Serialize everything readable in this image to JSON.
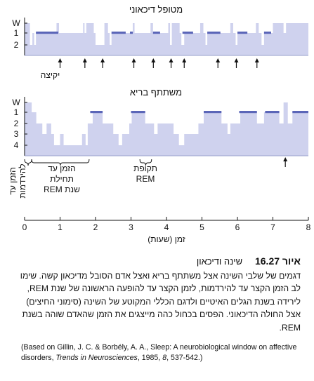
{
  "chart_data": {
    "type": "area",
    "xlabel": "זמן (שעות)",
    "x_ticks": [
      0,
      1,
      2,
      3,
      4,
      5,
      6,
      7,
      8
    ],
    "xlim": [
      0,
      8
    ],
    "y_levels": [
      "W",
      "1",
      "2",
      "3",
      "4"
    ],
    "fill_color": "#cfd2ee",
    "rem_color": "#5b66b8",
    "panels": [
      {
        "title": "מטופל דיכאוני",
        "hypnogram": [
          [
            "W",
            0.0
          ],
          [
            "2",
            0.15
          ],
          [
            "1",
            0.22
          ],
          [
            "2",
            0.27
          ],
          [
            "1",
            0.32
          ],
          [
            "W",
            0.9
          ],
          [
            "1",
            0.97
          ],
          [
            "W",
            1.65
          ],
          [
            "1",
            1.69
          ],
          [
            "W",
            1.74
          ],
          [
            "1",
            1.95
          ],
          [
            "2",
            2.0
          ],
          [
            "W",
            2.25
          ],
          [
            "1",
            2.35
          ],
          [
            "2",
            2.4
          ],
          [
            "1",
            2.45
          ],
          [
            "W",
            3.05
          ],
          [
            "1",
            3.1
          ],
          [
            "W",
            3.55
          ],
          [
            "1",
            3.62
          ],
          [
            "W",
            4.05
          ],
          [
            "2",
            4.1
          ],
          [
            "W",
            4.15
          ],
          [
            "1",
            4.37
          ],
          [
            "2",
            4.42
          ],
          [
            "1",
            4.5
          ],
          [
            "W",
            4.95
          ],
          [
            "1",
            5.04
          ],
          [
            "2",
            5.1
          ],
          [
            "1",
            5.15
          ],
          [
            "W",
            5.8
          ],
          [
            "1",
            5.88
          ],
          [
            "2",
            5.95
          ],
          [
            "1",
            6.0
          ],
          [
            "W",
            6.52
          ],
          [
            "1",
            6.6
          ],
          [
            "2",
            6.68
          ],
          [
            "1",
            6.75
          ],
          [
            "W",
            7.0
          ],
          [
            "1",
            7.3
          ],
          [
            "W",
            7.37
          ],
          [
            "W",
            8.0
          ]
        ],
        "rem": [
          [
            0.32,
            0.95
          ],
          [
            2.45,
            2.85
          ],
          [
            2.97,
            3.05
          ],
          [
            3.62,
            3.82
          ],
          [
            4.45,
            4.75
          ],
          [
            5.15,
            5.52
          ],
          [
            6.0,
            6.28
          ],
          [
            6.75,
            6.95
          ]
        ],
        "awakenings": [
          1.0,
          1.7,
          2.2,
          3.08,
          3.63,
          4.13,
          4.5,
          5.45,
          5.97,
          6.55
        ],
        "awakening_label": "יקיצה"
      },
      {
        "title": "משתתף בריא",
        "hypnogram": [
          [
            "W",
            0.0
          ],
          [
            "1",
            0.2
          ],
          [
            "2",
            0.33
          ],
          [
            "3",
            0.5
          ],
          [
            "2",
            0.62
          ],
          [
            "3",
            0.75
          ],
          [
            "4",
            0.83
          ],
          [
            "3",
            1.0
          ],
          [
            "4",
            1.1
          ],
          [
            "3",
            1.62
          ],
          [
            "4",
            1.72
          ],
          [
            "2",
            1.78
          ],
          [
            "1",
            1.92
          ],
          [
            "2",
            2.2
          ],
          [
            "3",
            2.5
          ],
          [
            "4",
            2.65
          ],
          [
            "3",
            2.75
          ],
          [
            "2",
            2.95
          ],
          [
            "1",
            3.02
          ],
          [
            "2",
            3.4
          ],
          [
            "3",
            3.65
          ],
          [
            "2",
            3.75
          ],
          [
            "3",
            4.2
          ],
          [
            "4",
            4.35
          ],
          [
            "3",
            4.5
          ],
          [
            "2",
            4.9
          ],
          [
            "1",
            5.05
          ],
          [
            "2",
            5.55
          ],
          [
            "3",
            5.72
          ],
          [
            "2",
            5.8
          ],
          [
            "1",
            6.08
          ],
          [
            "2",
            6.55
          ],
          [
            "1",
            6.75
          ],
          [
            "2",
            7.18
          ],
          [
            "W",
            7.3
          ],
          [
            "2",
            7.42
          ],
          [
            "1",
            7.55
          ],
          [
            "1",
            8.0
          ]
        ],
        "rem": [
          [
            1.85,
            2.2
          ],
          [
            3.0,
            3.4
          ],
          [
            5.05,
            5.55
          ],
          [
            6.05,
            6.55
          ],
          [
            6.78,
            7.18
          ],
          [
            7.55,
            8.0
          ]
        ],
        "awakenings": [
          7.35
        ],
        "intervals": [
          {
            "label": "הזמן עד להירדמות",
            "from": 0.0,
            "to": 0.2
          },
          {
            "label": "הזמן עד תחילת שנת REM",
            "from": 0.2,
            "to": 1.82
          },
          {
            "label": "תקופת REM",
            "from": 3.25,
            "to": 3.58
          }
        ]
      }
    ]
  },
  "figure": {
    "number": "איור 16.27",
    "title": "שינה ודיכאון",
    "text": "דגמים של שלבי השינה אצל משתתף בריא ואצל אדם הסובל מדיכאון קשה. שימו לב הזמן הקצר עד להירדמות, לזמן הקצר עד להופעה הראשונה של שנת REM, לירידה בשנת הגלים האיטיים ולדגם הכללי המקוטע של השינה (סימוני החיצים) אצל החולה הדיכאוני. הפסים בכחול כהה מייצגים את הזמן שהאדם שוהה בשנת REM.",
    "ref_pre": "(Based on Gillin, J. C. & Borbély, A. A., Sleep: A neurobiological window on affective disorders, ",
    "ref_journal": "Trends in Neurosciences",
    "ref_post": ", 1985, ",
    "ref_vol": "8",
    "ref_pages": ", 537-542.)"
  }
}
